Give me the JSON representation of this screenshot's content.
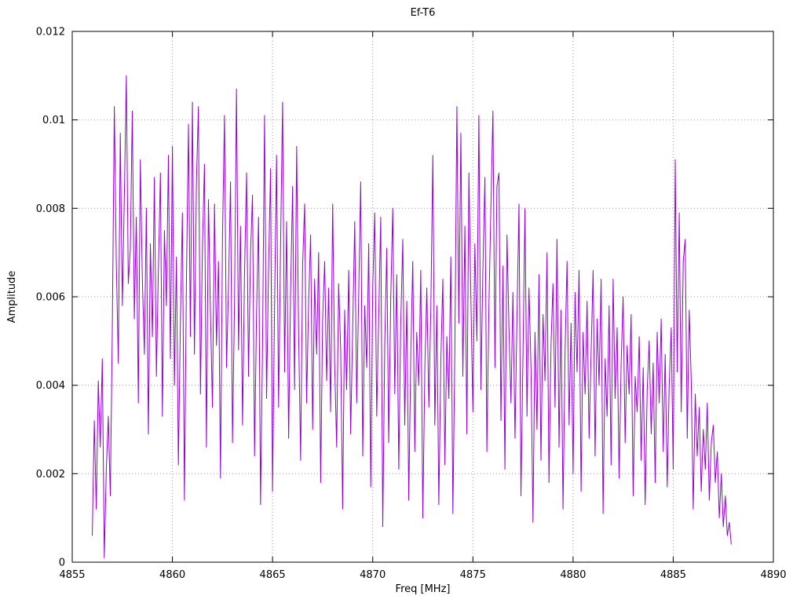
{
  "chart": {
    "title": "Ef-T6",
    "xlabel": "Freq [MHz]",
    "ylabel": "Amplitude"
  },
  "chart_data": {
    "type": "line",
    "title": "Ef-T6",
    "xlabel": "Freq [MHz]",
    "ylabel": "Amplitude",
    "xlim": [
      4855,
      4890
    ],
    "ylim": [
      0,
      0.012
    ],
    "grid": true,
    "legend": false,
    "line_color": "#9400d3",
    "x_tick_values": [
      4855,
      4860,
      4865,
      4870,
      4875,
      4880,
      4885,
      4890
    ],
    "x_tick_labels": [
      "4855",
      "4860",
      "4865",
      "4870",
      "4875",
      "4880",
      "4885",
      "4890"
    ],
    "y_tick_values": [
      0,
      0.002,
      0.004,
      0.006,
      0.008,
      0.01,
      0.012
    ],
    "y_tick_labels": [
      "0",
      "0.002",
      "0.004",
      "0.006",
      "0.008",
      "0.01",
      "0.012"
    ],
    "x_start": 4856.0,
    "x_step": 0.1,
    "series": [
      {
        "name": "Ef-T6",
        "values": [
          0.0006,
          0.0032,
          0.0012,
          0.0041,
          0.0026,
          0.0046,
          0.0001,
          0.0021,
          0.0033,
          0.0015,
          0.0052,
          0.0103,
          0.0068,
          0.0045,
          0.0097,
          0.0058,
          0.0082,
          0.011,
          0.0063,
          0.0071,
          0.0102,
          0.0055,
          0.0078,
          0.0036,
          0.0091,
          0.0064,
          0.0047,
          0.008,
          0.0029,
          0.0072,
          0.0051,
          0.0087,
          0.0042,
          0.0066,
          0.0088,
          0.0033,
          0.0075,
          0.0058,
          0.0092,
          0.0046,
          0.0094,
          0.004,
          0.0069,
          0.0022,
          0.0055,
          0.0079,
          0.0014,
          0.0063,
          0.0099,
          0.0051,
          0.0104,
          0.0047,
          0.0086,
          0.0103,
          0.0038,
          0.0071,
          0.009,
          0.0026,
          0.0082,
          0.0057,
          0.0035,
          0.0081,
          0.0049,
          0.0068,
          0.0019,
          0.0074,
          0.0101,
          0.0044,
          0.0062,
          0.0086,
          0.0027,
          0.0059,
          0.0107,
          0.0048,
          0.0076,
          0.0031,
          0.0065,
          0.0088,
          0.0042,
          0.007,
          0.0083,
          0.0024,
          0.0056,
          0.0078,
          0.0013,
          0.0049,
          0.0101,
          0.0037,
          0.0066,
          0.0089,
          0.0016,
          0.0058,
          0.0092,
          0.0035,
          0.0071,
          0.0104,
          0.0043,
          0.0077,
          0.0028,
          0.0061,
          0.0085,
          0.0039,
          0.0094,
          0.0052,
          0.0023,
          0.0067,
          0.0081,
          0.0036,
          0.0059,
          0.0074,
          0.003,
          0.0064,
          0.0047,
          0.007,
          0.0018,
          0.0055,
          0.0068,
          0.0041,
          0.0062,
          0.0034,
          0.0081,
          0.0045,
          0.0026,
          0.0063,
          0.0048,
          0.0012,
          0.0057,
          0.0039,
          0.0066,
          0.0029,
          0.0053,
          0.0077,
          0.0036,
          0.0061,
          0.0086,
          0.0024,
          0.0058,
          0.0044,
          0.0072,
          0.0017,
          0.0062,
          0.0079,
          0.0033,
          0.0056,
          0.0078,
          0.0008,
          0.0049,
          0.0071,
          0.0027,
          0.006,
          0.008,
          0.0038,
          0.0065,
          0.0021,
          0.0054,
          0.0073,
          0.0031,
          0.0059,
          0.0014,
          0.0047,
          0.0068,
          0.0025,
          0.0052,
          0.004,
          0.0066,
          0.001,
          0.0044,
          0.0062,
          0.0035,
          0.0057,
          0.0092,
          0.0031,
          0.0058,
          0.0013,
          0.0046,
          0.0064,
          0.0022,
          0.0051,
          0.0037,
          0.0069,
          0.0011,
          0.0048,
          0.0103,
          0.0054,
          0.0097,
          0.0042,
          0.0076,
          0.0029,
          0.0088,
          0.006,
          0.0034,
          0.0072,
          0.005,
          0.0101,
          0.0039,
          0.0066,
          0.0087,
          0.0025,
          0.0058,
          0.008,
          0.0102,
          0.0044,
          0.0085,
          0.0088,
          0.0032,
          0.0067,
          0.0021,
          0.0074,
          0.0053,
          0.0036,
          0.0061,
          0.0028,
          0.0055,
          0.0081,
          0.0015,
          0.0047,
          0.008,
          0.0033,
          0.0062,
          0.0044,
          0.0009,
          0.0052,
          0.003,
          0.0065,
          0.0023,
          0.0056,
          0.0041,
          0.007,
          0.0018,
          0.0049,
          0.0063,
          0.0035,
          0.0073,
          0.0026,
          0.0057,
          0.0012,
          0.0048,
          0.0068,
          0.0031,
          0.0054,
          0.002,
          0.0061,
          0.0043,
          0.0066,
          0.0016,
          0.0052,
          0.0038,
          0.0059,
          0.0028,
          0.0047,
          0.0066,
          0.0024,
          0.0055,
          0.004,
          0.0064,
          0.0011,
          0.0046,
          0.0033,
          0.0058,
          0.0022,
          0.0064,
          0.0037,
          0.0053,
          0.0019,
          0.0045,
          0.006,
          0.0027,
          0.0049,
          0.0038,
          0.0056,
          0.0015,
          0.0042,
          0.0034,
          0.0051,
          0.0023,
          0.0044,
          0.0013,
          0.0039,
          0.005,
          0.0029,
          0.0045,
          0.0018,
          0.0052,
          0.0036,
          0.0055,
          0.0025,
          0.0047,
          0.0017,
          0.004,
          0.0053,
          0.0021,
          0.0091,
          0.0043,
          0.0079,
          0.0034,
          0.0068,
          0.0073,
          0.0028,
          0.0057,
          0.0041,
          0.0012,
          0.0038,
          0.0024,
          0.0035,
          0.0016,
          0.003,
          0.0021,
          0.0036,
          0.0014,
          0.0027,
          0.0031,
          0.0018,
          0.0025,
          0.001,
          0.002,
          0.0008,
          0.0015,
          0.0006,
          0.0009,
          0.0004
        ]
      }
    ]
  }
}
